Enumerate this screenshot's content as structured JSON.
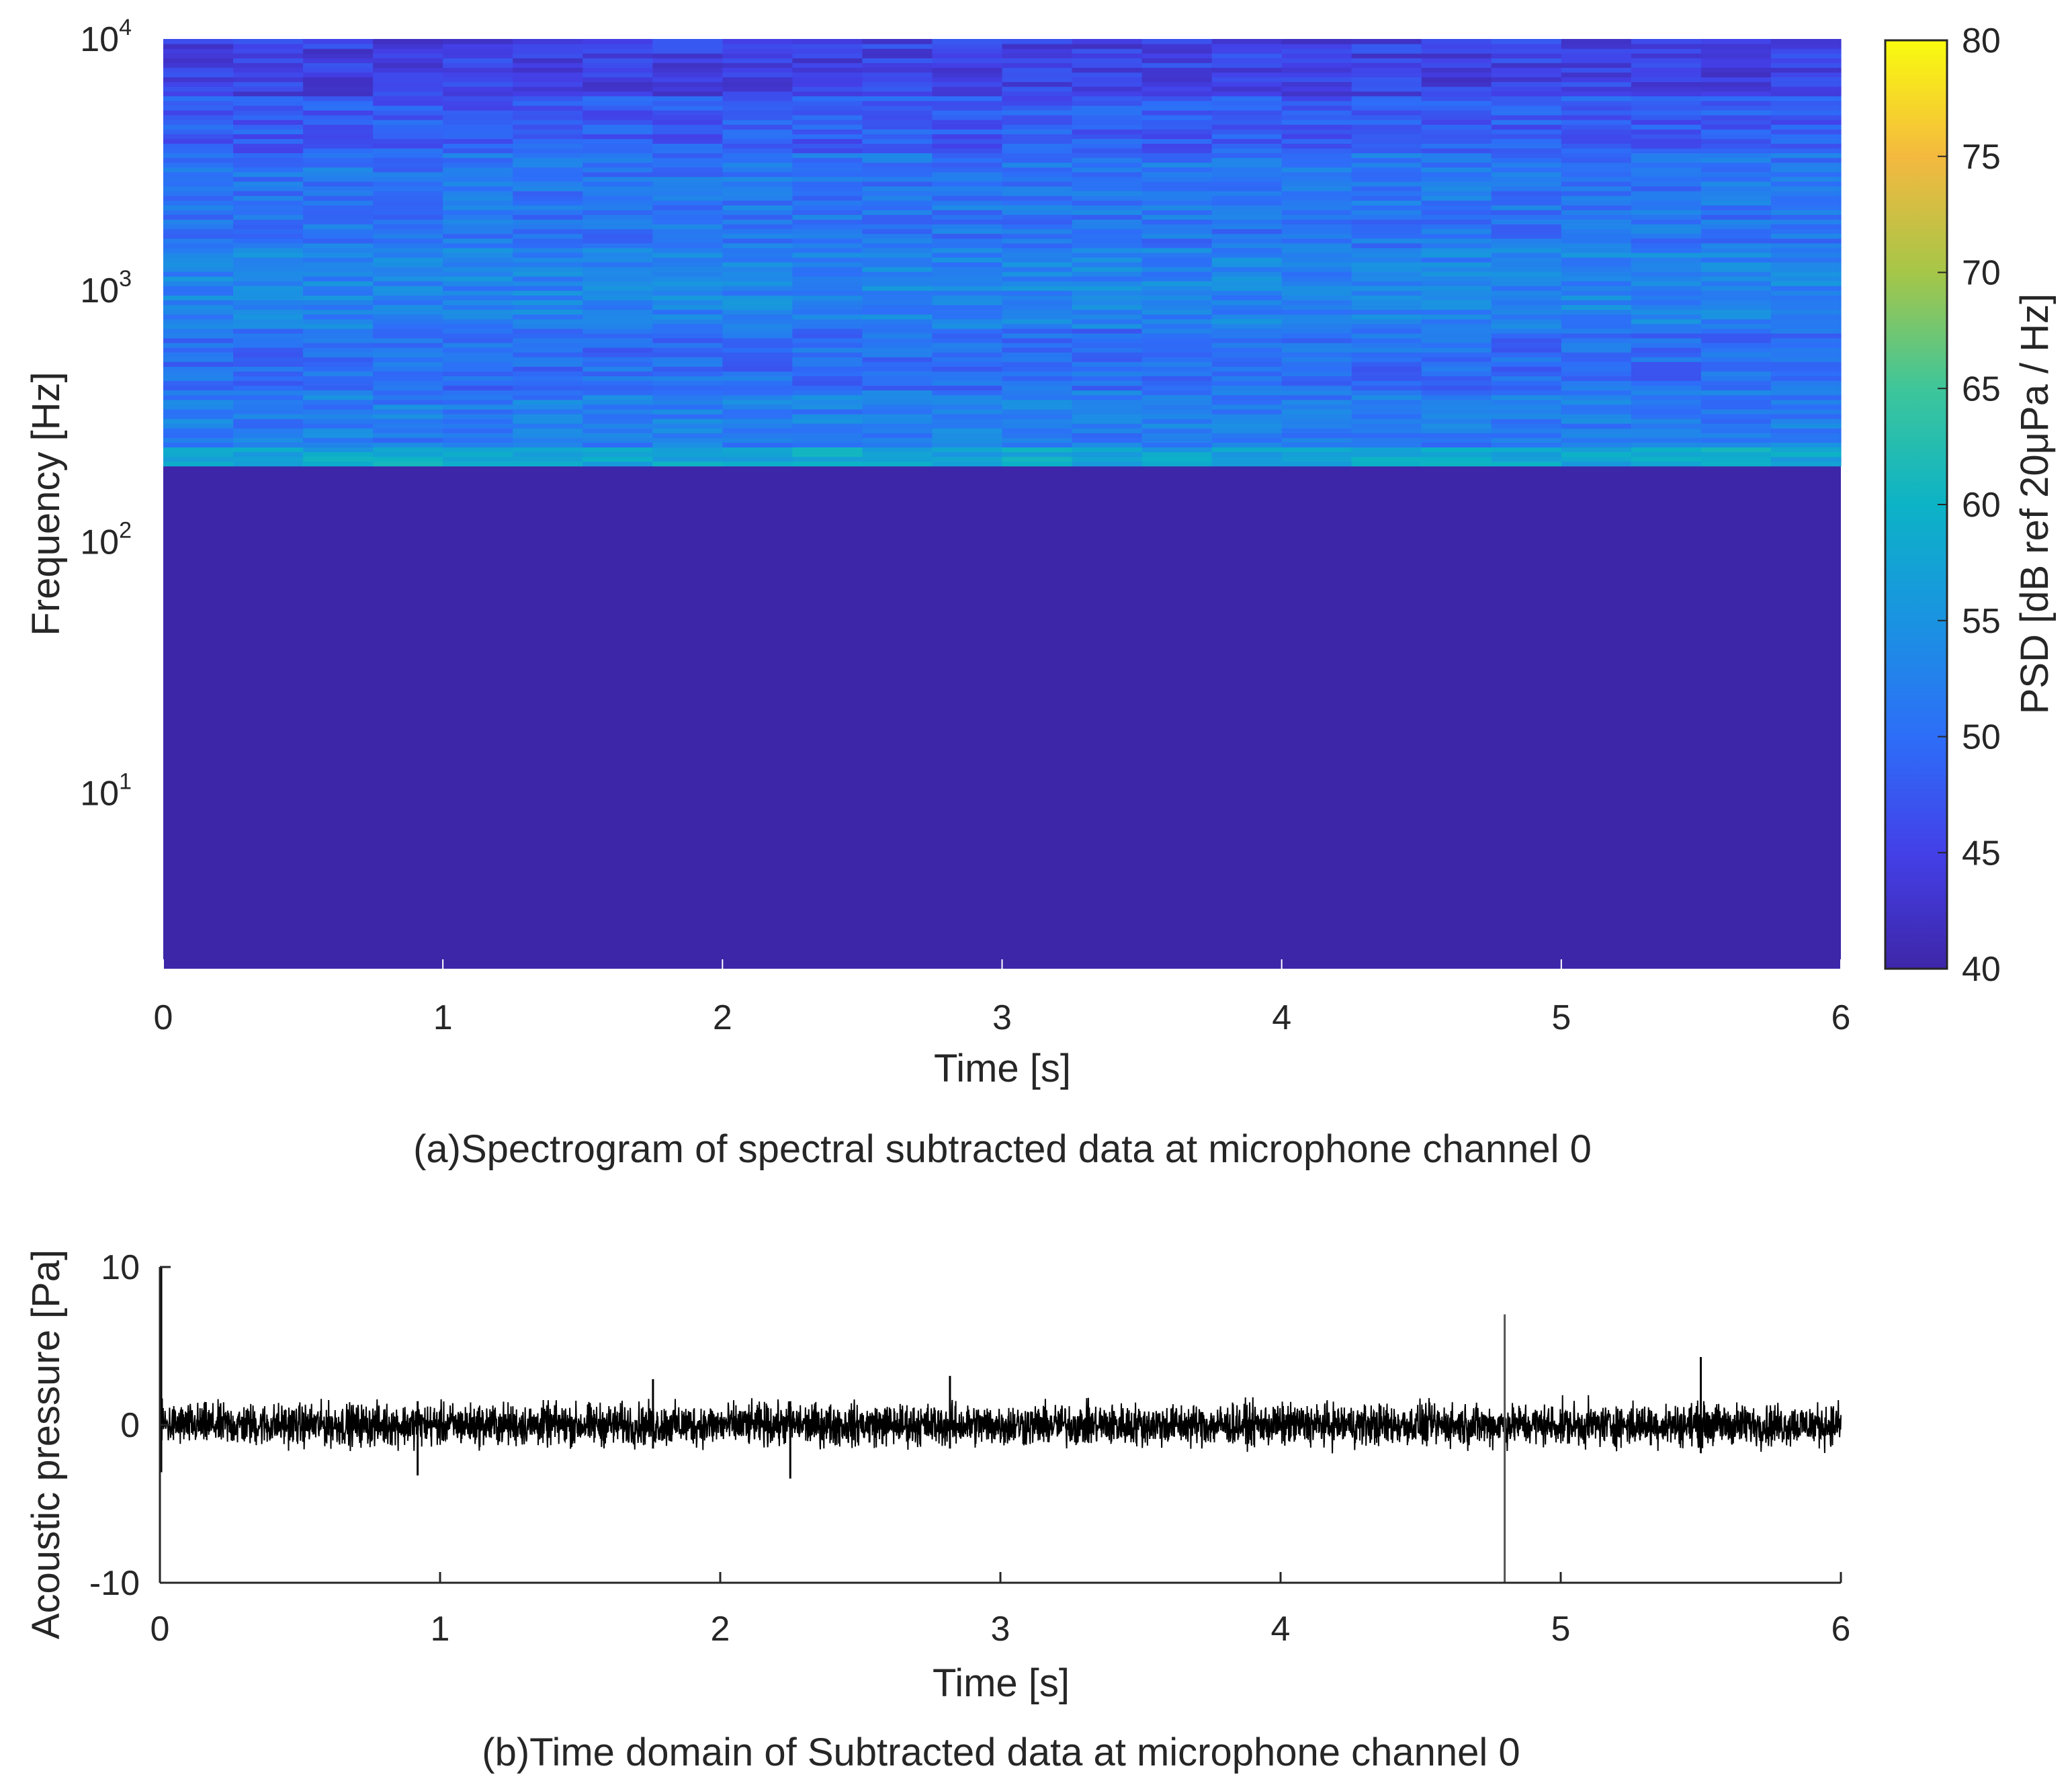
{
  "figure": {
    "caption_a": "(a)Spectrogram of spectral subtracted data at microphone channel 0",
    "caption_b": "(b)Time domain of Subtracted data at microphone channel 0"
  },
  "colors": {
    "axis": "#262626",
    "signal": "#000000",
    "parula_low": "#3d26a8",
    "parula_mid": "#1fa9e1",
    "parula_high": "#f9fb0e"
  },
  "chart_data": [
    {
      "type": "heatmap",
      "title": "(a)Spectrogram of spectral subtracted data at microphone channel 0",
      "xlabel": "Time [s]",
      "ylabel": "Frequency [Hz]",
      "x_scale": "linear",
      "y_scale": "log",
      "xlim": [
        0,
        6
      ],
      "ylim": [
        2,
        10000
      ],
      "xticks": [
        0,
        1,
        2,
        3,
        4,
        5,
        6
      ],
      "xtick_labels": [
        "0",
        "1",
        "2",
        "3",
        "4",
        "5",
        "6"
      ],
      "yticks": [
        {
          "value": 10,
          "base": "10",
          "exp": "1"
        },
        {
          "value": 100,
          "base": "10",
          "exp": "2"
        },
        {
          "value": 1000,
          "base": "10",
          "exp": "3"
        },
        {
          "value": 10000,
          "base": "10",
          "exp": "4"
        }
      ],
      "time_frames": 24,
      "frame_duration_s": 0.25,
      "cutoff_frequency_hz": 200,
      "below_cutoff_level_db": 40,
      "band_levels_db": [
        {
          "f_low": 200,
          "f_high": 240,
          "db": 58
        },
        {
          "f_low": 240,
          "f_high": 400,
          "db": 52
        },
        {
          "f_low": 400,
          "f_high": 700,
          "db": 50
        },
        {
          "f_low": 700,
          "f_high": 1500,
          "db": 53
        },
        {
          "f_low": 1500,
          "f_high": 3500,
          "db": 51
        },
        {
          "f_low": 3500,
          "f_high": 6000,
          "db": 48
        },
        {
          "f_low": 6000,
          "f_high": 10000,
          "db": 45
        }
      ],
      "colorbar": {
        "label": "PSD [dB ref 20μPa / Hz]",
        "colormap": "parula",
        "clim": [
          40,
          80
        ],
        "ticks": [
          40,
          45,
          50,
          55,
          60,
          65,
          70,
          75,
          80
        ],
        "tick_labels": [
          "40",
          "45",
          "50",
          "55",
          "60",
          "65",
          "70",
          "75",
          "80"
        ]
      }
    },
    {
      "type": "line",
      "title": "(b)Time domain of Subtracted data at microphone channel 0",
      "xlabel": "Time [s]",
      "ylabel": "Acoustic pressure [Pa]",
      "xlim": [
        0,
        6
      ],
      "ylim": [
        -10,
        10
      ],
      "xticks": [
        0,
        1,
        2,
        3,
        4,
        5,
        6
      ],
      "xtick_labels": [
        "0",
        "1",
        "2",
        "3",
        "4",
        "5",
        "6"
      ],
      "yticks": [
        -10,
        0,
        10
      ],
      "ytick_labels": [
        "-10",
        "0",
        "10"
      ],
      "series": [
        {
          "name": "Subtracted data at microphone channel 0",
          "typical_amplitude_pa": 1.5,
          "spikes": [
            {
              "t": 0.0,
              "min": -3,
              "max": 10
            },
            {
              "t": 0.92,
              "min": -3.2,
              "max": 1.5
            },
            {
              "t": 1.76,
              "min": -1.5,
              "max": 2.9
            },
            {
              "t": 2.25,
              "min": -3.4,
              "max": 1.5
            },
            {
              "t": 2.82,
              "min": -1.5,
              "max": 3.1
            },
            {
              "t": 4.8,
              "min": -10,
              "max": 7
            },
            {
              "t": 5.5,
              "min": -1.8,
              "max": 4.3
            }
          ]
        }
      ]
    }
  ]
}
